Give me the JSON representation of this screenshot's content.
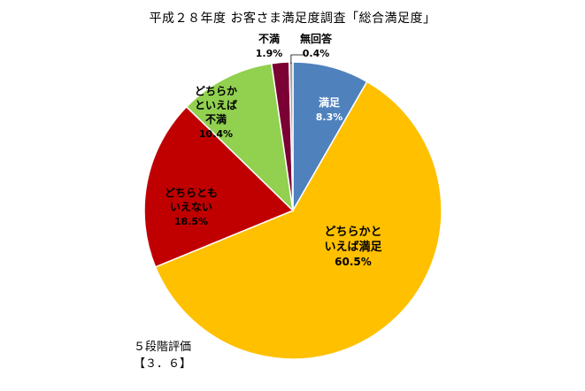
{
  "chart_data": {
    "type": "pie",
    "title": "平成２８年度 お客さま満足度調査「総合満足度」",
    "categories": [
      "満足",
      "どちらかといえば満足",
      "どちらともいえない",
      "どちらかといえば不満",
      "不満",
      "無回答"
    ],
    "label_lines": [
      [
        "満足"
      ],
      [
        "どちらかと",
        "いえば満足"
      ],
      [
        "どちらとも",
        "いえない"
      ],
      [
        "どちらか",
        "といえば",
        "不満"
      ],
      [
        "不満"
      ],
      [
        "無回答"
      ]
    ],
    "values": [
      8.3,
      60.5,
      18.5,
      10.4,
      1.9,
      0.4
    ],
    "value_labels": [
      "8.3%",
      "60.5%",
      "18.5%",
      "10.4%",
      "1.9%",
      "0.4%"
    ],
    "colors": [
      "#4F81BD",
      "#FFC000",
      "#C00000",
      "#92D050",
      "#7B0034",
      "#A6A6A6"
    ],
    "start": "12 o'clock",
    "direction": "clockwise",
    "legend": "none",
    "note": [
      "５段階評価",
      "【３．６】"
    ]
  }
}
